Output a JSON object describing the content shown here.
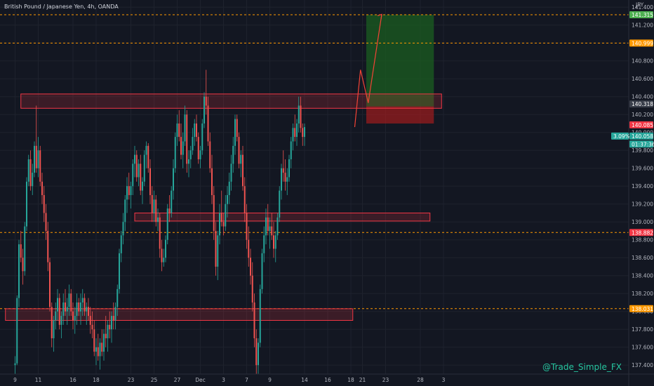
{
  "header": {
    "symbol_title": "British Pound / Japanese Yen, 4h, OANDA"
  },
  "watermark": "@Trade_Simple_FX",
  "colors": {
    "background": "#131722",
    "up_candle": "#26a69a",
    "down_candle": "#ef5350",
    "zone": "#f23645",
    "level_line": "#ff9800",
    "target_zone": "#1b5e20",
    "stop_zone": "#b71c1c",
    "projection": "#f44336"
  },
  "chart_data": {
    "type": "candlestick",
    "title": "British Pound / Japanese Yen, 4h, OANDA",
    "currency_label": "JPY",
    "ylim": [
      137.3,
      141.48
    ],
    "y_ticks": [
      137.4,
      137.6,
      137.8,
      138.0,
      138.2,
      138.4,
      138.6,
      138.8,
      139.0,
      139.2,
      139.4,
      139.6,
      139.8,
      140.0,
      140.2,
      140.4,
      140.6,
      140.8,
      141.0,
      141.2,
      141.4
    ],
    "y_tick_labels": [
      "137.400",
      "137.600",
      "137.800",
      "138.000",
      "138.200",
      "138.400",
      "138.600",
      "138.800",
      "139.000",
      "139.200",
      "139.400",
      "139.600",
      "139.800",
      "140.000",
      "140.200",
      "140.400",
      "140.600",
      "140.800",
      "141.000",
      "141.200",
      "141.400"
    ],
    "x_ticks": [
      {
        "label": "9",
        "bar": 0
      },
      {
        "label": "11",
        "bar": 12
      },
      {
        "label": "16",
        "bar": 30
      },
      {
        "label": "18",
        "bar": 42
      },
      {
        "label": "23",
        "bar": 60
      },
      {
        "label": "25",
        "bar": 72
      },
      {
        "label": "27",
        "bar": 84
      },
      {
        "label": "Dec",
        "bar": 96
      },
      {
        "label": "3",
        "bar": 108
      },
      {
        "label": "7",
        "bar": 120
      },
      {
        "label": "9",
        "bar": 132
      },
      {
        "label": "14",
        "bar": 150
      },
      {
        "label": "16",
        "bar": 162
      },
      {
        "label": "18",
        "bar": 174
      },
      {
        "label": "21",
        "bar": 180
      },
      {
        "label": "23",
        "bar": 192
      },
      {
        "label": "28",
        "bar": 210
      },
      {
        "label": "3",
        "bar": 222
      }
    ],
    "candles_ohlc": [
      [
        137.4,
        137.5,
        137.3,
        137.42
      ],
      [
        137.42,
        138.18,
        137.4,
        138.15
      ],
      [
        138.15,
        138.8,
        138.05,
        138.75
      ],
      [
        138.75,
        138.9,
        138.55,
        138.6
      ],
      [
        138.6,
        138.7,
        138.3,
        138.45
      ],
      [
        138.45,
        139.0,
        138.4,
        138.95
      ],
      [
        138.95,
        139.5,
        138.9,
        139.45
      ],
      [
        139.45,
        139.75,
        139.4,
        139.7
      ],
      [
        139.7,
        139.8,
        139.35,
        139.4
      ],
      [
        139.4,
        139.65,
        139.3,
        139.55
      ],
      [
        139.55,
        139.9,
        139.5,
        139.85
      ],
      [
        139.85,
        140.3,
        139.55,
        139.6
      ],
      [
        139.6,
        139.95,
        139.5,
        139.8
      ],
      [
        139.8,
        139.85,
        139.4,
        139.45
      ],
      [
        139.45,
        139.55,
        139.2,
        139.3
      ],
      [
        139.3,
        139.4,
        139.0,
        139.1
      ],
      [
        139.1,
        139.2,
        138.8,
        138.9
      ],
      [
        138.9,
        139.0,
        138.45,
        138.55
      ],
      [
        138.55,
        138.6,
        138.0,
        138.05
      ],
      [
        138.05,
        138.1,
        137.6,
        137.7
      ],
      [
        137.7,
        137.95,
        137.55,
        137.9
      ],
      [
        137.9,
        138.1,
        137.8,
        138.0
      ],
      [
        138.0,
        138.25,
        137.9,
        138.15
      ],
      [
        138.15,
        138.2,
        137.8,
        137.85
      ],
      [
        137.85,
        138.0,
        137.7,
        137.95
      ],
      [
        137.95,
        138.2,
        137.85,
        138.1
      ],
      [
        138.1,
        138.25,
        137.95,
        138.0
      ],
      [
        138.0,
        138.15,
        137.85,
        138.05
      ],
      [
        138.05,
        138.3,
        137.95,
        138.2
      ],
      [
        138.2,
        138.25,
        137.95,
        138.0
      ],
      [
        138.0,
        138.1,
        137.8,
        137.9
      ],
      [
        137.9,
        138.05,
        137.75,
        137.95
      ],
      [
        137.95,
        138.2,
        137.85,
        138.1
      ],
      [
        138.1,
        138.15,
        137.95,
        138.0
      ],
      [
        138.0,
        138.2,
        137.85,
        138.1
      ],
      [
        138.1,
        138.25,
        137.95,
        138.15
      ],
      [
        138.15,
        138.2,
        137.95,
        138.0
      ],
      [
        138.0,
        138.1,
        137.85,
        138.05
      ],
      [
        138.05,
        138.15,
        137.9,
        137.95
      ],
      [
        137.95,
        138.05,
        137.75,
        137.85
      ],
      [
        137.85,
        138.0,
        137.7,
        137.8
      ],
      [
        137.8,
        137.9,
        137.5,
        137.55
      ],
      [
        137.55,
        137.7,
        137.4,
        137.6
      ],
      [
        137.6,
        137.75,
        137.45,
        137.5
      ],
      [
        137.5,
        137.7,
        137.35,
        137.65
      ],
      [
        137.65,
        137.8,
        137.5,
        137.55
      ],
      [
        137.55,
        137.8,
        137.45,
        137.75
      ],
      [
        137.75,
        137.95,
        137.6,
        137.7
      ],
      [
        137.7,
        137.9,
        137.55,
        137.85
      ],
      [
        137.85,
        138.0,
        137.7,
        137.8
      ],
      [
        137.8,
        138.0,
        137.65,
        137.95
      ],
      [
        137.95,
        138.1,
        137.8,
        137.9
      ],
      [
        137.9,
        138.1,
        137.8,
        138.05
      ],
      [
        138.05,
        138.3,
        137.95,
        138.25
      ],
      [
        138.25,
        138.7,
        138.2,
        138.65
      ],
      [
        138.65,
        138.9,
        138.55,
        138.85
      ],
      [
        138.85,
        139.1,
        138.75,
        139.0
      ],
      [
        139.0,
        139.3,
        138.9,
        139.25
      ],
      [
        139.25,
        139.5,
        139.1,
        139.4
      ],
      [
        139.4,
        139.55,
        139.25,
        139.3
      ],
      [
        139.3,
        139.45,
        139.15,
        139.4
      ],
      [
        139.4,
        139.7,
        139.3,
        139.65
      ],
      [
        139.65,
        139.85,
        139.5,
        139.75
      ],
      [
        139.75,
        139.8,
        139.45,
        139.5
      ],
      [
        139.5,
        139.7,
        139.4,
        139.65
      ],
      [
        139.65,
        139.75,
        139.3,
        139.35
      ],
      [
        139.35,
        139.5,
        139.2,
        139.45
      ],
      [
        139.45,
        139.8,
        139.4,
        139.75
      ],
      [
        139.75,
        139.9,
        139.6,
        139.85
      ],
      [
        139.85,
        139.88,
        139.55,
        139.6
      ],
      [
        139.6,
        139.7,
        139.2,
        139.3
      ],
      [
        139.3,
        139.4,
        139.0,
        139.1
      ],
      [
        139.1,
        139.35,
        139.0,
        139.25
      ],
      [
        139.25,
        139.3,
        138.95,
        139.0
      ],
      [
        139.0,
        139.15,
        138.9,
        139.05
      ],
      [
        139.05,
        139.1,
        138.6,
        138.7
      ],
      [
        138.7,
        138.8,
        138.45,
        138.55
      ],
      [
        138.55,
        138.7,
        138.5,
        138.6
      ],
      [
        138.6,
        138.85,
        138.55,
        138.8
      ],
      [
        138.8,
        139.2,
        138.75,
        139.15
      ],
      [
        139.15,
        139.3,
        139.0,
        139.1
      ],
      [
        139.1,
        139.4,
        139.05,
        139.35
      ],
      [
        139.35,
        139.7,
        139.25,
        139.6
      ],
      [
        139.6,
        140.0,
        139.55,
        139.95
      ],
      [
        139.95,
        140.2,
        139.85,
        140.1
      ],
      [
        140.1,
        140.25,
        139.9,
        139.95
      ],
      [
        139.95,
        140.1,
        139.7,
        139.75
      ],
      [
        139.75,
        140.0,
        139.6,
        139.9
      ],
      [
        139.9,
        140.3,
        139.85,
        140.2
      ],
      [
        140.2,
        140.25,
        139.55,
        139.65
      ],
      [
        139.65,
        139.8,
        139.5,
        139.7
      ],
      [
        139.7,
        139.85,
        139.6,
        139.8
      ],
      [
        139.8,
        140.05,
        139.75,
        139.95
      ],
      [
        139.95,
        140.15,
        139.85,
        140.1
      ],
      [
        140.1,
        140.2,
        139.9,
        139.95
      ],
      [
        139.95,
        140.0,
        139.65,
        139.7
      ],
      [
        139.7,
        139.85,
        139.6,
        139.8
      ],
      [
        139.8,
        140.15,
        139.75,
        140.1
      ],
      [
        140.1,
        140.45,
        140.05,
        140.4
      ],
      [
        140.4,
        140.7,
        140.2,
        140.3
      ],
      [
        140.3,
        140.4,
        139.85,
        139.9
      ],
      [
        139.9,
        140.0,
        139.55,
        139.6
      ],
      [
        139.6,
        139.75,
        139.2,
        139.3
      ],
      [
        139.3,
        139.4,
        138.8,
        138.9
      ],
      [
        138.9,
        139.0,
        138.4,
        138.5
      ],
      [
        138.5,
        138.9,
        138.35,
        138.85
      ],
      [
        138.85,
        139.2,
        138.75,
        139.1
      ],
      [
        139.1,
        139.35,
        138.95,
        139.0
      ],
      [
        139.0,
        139.1,
        138.85,
        138.95
      ],
      [
        138.95,
        139.3,
        138.9,
        139.2
      ],
      [
        139.2,
        139.4,
        139.05,
        139.3
      ],
      [
        139.3,
        139.55,
        139.2,
        139.45
      ],
      [
        139.45,
        139.75,
        139.35,
        139.65
      ],
      [
        139.65,
        139.95,
        139.55,
        139.85
      ],
      [
        139.85,
        140.2,
        139.75,
        140.15
      ],
      [
        140.15,
        140.2,
        139.9,
        139.95
      ],
      [
        139.95,
        140.0,
        139.6,
        139.65
      ],
      [
        139.65,
        139.8,
        139.5,
        139.75
      ],
      [
        139.75,
        139.85,
        139.35,
        139.4
      ],
      [
        139.4,
        139.5,
        139.0,
        139.1
      ],
      [
        139.1,
        139.2,
        138.7,
        138.8
      ],
      [
        138.8,
        138.95,
        138.5,
        138.6
      ],
      [
        138.6,
        138.7,
        138.3,
        138.4
      ],
      [
        138.4,
        138.55,
        138.0,
        138.1
      ],
      [
        138.1,
        138.2,
        137.6,
        137.7
      ],
      [
        137.7,
        137.8,
        137.3,
        137.4
      ],
      [
        137.4,
        137.7,
        137.3,
        137.65
      ],
      [
        137.65,
        138.3,
        137.6,
        138.25
      ],
      [
        138.25,
        138.7,
        138.2,
        138.65
      ],
      [
        138.65,
        138.95,
        138.55,
        138.85
      ],
      [
        138.85,
        139.15,
        138.75,
        139.05
      ],
      [
        139.05,
        139.2,
        138.85,
        138.9
      ],
      [
        138.9,
        139.05,
        138.7,
        138.95
      ],
      [
        138.95,
        139.1,
        138.8,
        138.85
      ],
      [
        138.85,
        139.0,
        138.6,
        138.7
      ],
      [
        138.7,
        138.9,
        138.55,
        138.85
      ],
      [
        138.85,
        139.1,
        138.8,
        139.05
      ],
      [
        139.05,
        139.4,
        139.0,
        139.35
      ],
      [
        139.35,
        139.65,
        139.25,
        139.6
      ],
      [
        139.6,
        139.8,
        139.45,
        139.55
      ],
      [
        139.55,
        139.7,
        139.35,
        139.45
      ],
      [
        139.45,
        139.6,
        139.3,
        139.5
      ],
      [
        139.5,
        139.75,
        139.45,
        139.7
      ],
      [
        139.7,
        139.95,
        139.6,
        139.9
      ],
      [
        139.9,
        140.1,
        139.8,
        140.05
      ],
      [
        140.05,
        140.2,
        139.9,
        139.95
      ],
      [
        139.95,
        140.15,
        139.85,
        140.1
      ],
      [
        140.1,
        140.4,
        140.0,
        140.3
      ],
      [
        140.3,
        140.4,
        140.0,
        140.05
      ],
      [
        140.05,
        140.1,
        139.85,
        139.95
      ],
      [
        139.95,
        140.1,
        139.85,
        140.06
      ]
    ],
    "levels": [
      {
        "price": 141.315,
        "label": "141.315",
        "style": "dashed"
      },
      {
        "price": 140.999,
        "label": "140.999",
        "style": "dashed"
      },
      {
        "price": 138.882,
        "label": "138.882",
        "style": "dashed"
      },
      {
        "price": 138.031,
        "label": "138.031",
        "style": "dashed"
      }
    ],
    "zones": [
      {
        "bar_from": 3,
        "bar_to": 221,
        "top": 140.43,
        "bottom": 140.27,
        "label": "140.318"
      },
      {
        "bar_from": 62,
        "bar_to": 215,
        "top": 139.1,
        "bottom": 139.01
      },
      {
        "bar_from": -5,
        "bar_to": 175,
        "top": 138.03,
        "bottom": 137.9
      }
    ],
    "position": {
      "bar_from": 182,
      "bar_to": 217,
      "entry": 140.29,
      "target": 141.315,
      "stop": 140.1
    },
    "projection": [
      {
        "bar": 176,
        "price": 140.06
      },
      {
        "bar": 179,
        "price": 140.7
      },
      {
        "bar": 183,
        "price": 140.33
      },
      {
        "bar": 190,
        "price": 141.32
      }
    ],
    "price_labels": [
      {
        "text": "JPY",
        "price": 141.43
      },
      {
        "text": "141.315",
        "price": 141.315,
        "color": "#4caf50"
      },
      {
        "text": "140.999",
        "price": 140.999,
        "color": "#ff9800"
      },
      {
        "text": "140.318",
        "price": 140.318,
        "color": "#3a3f4b"
      },
      {
        "text": "140.085",
        "price": 140.085,
        "color": "#f23645"
      },
      {
        "text": "3.09%",
        "price": 139.96,
        "color": "#26a69a"
      },
      {
        "text": "140.058",
        "price": 139.96,
        "color": "#26a69a"
      },
      {
        "text": "01:37:36",
        "price": 139.87,
        "color": "#26a69a"
      },
      {
        "text": "138.882",
        "price": 138.882,
        "color": "#f23645"
      },
      {
        "text": "138.031",
        "price": 138.031,
        "color": "#ff9800"
      }
    ]
  }
}
